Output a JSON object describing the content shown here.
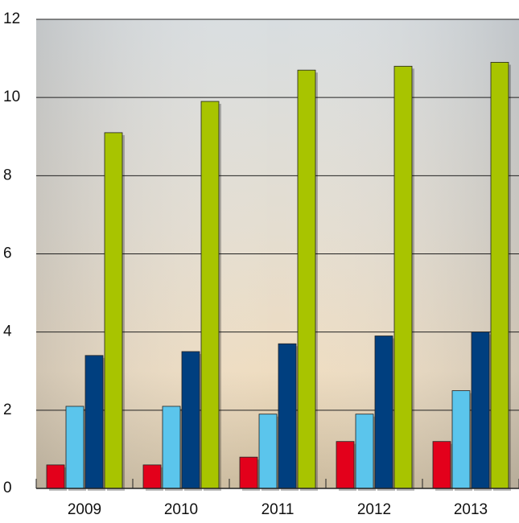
{
  "chart_data": {
    "type": "bar",
    "categories": [
      "2009",
      "2010",
      "2011",
      "2012",
      "2013"
    ],
    "series": [
      {
        "color": "#e3001b",
        "values": [
          0.6,
          0.6,
          0.8,
          1.2,
          1.2
        ]
      },
      {
        "color": "#5bc5ec",
        "values": [
          2.1,
          2.1,
          1.9,
          1.9,
          2.5
        ]
      },
      {
        "color": "#003f7f",
        "values": [
          3.4,
          3.5,
          3.7,
          3.9,
          4.0
        ]
      },
      {
        "color": "#a8c400",
        "values": [
          9.1,
          9.9,
          10.7,
          10.8,
          10.9
        ]
      }
    ],
    "ylim": [
      0,
      12
    ],
    "yticks": [
      0,
      2,
      4,
      6,
      8,
      10,
      12
    ],
    "grid": true
  }
}
